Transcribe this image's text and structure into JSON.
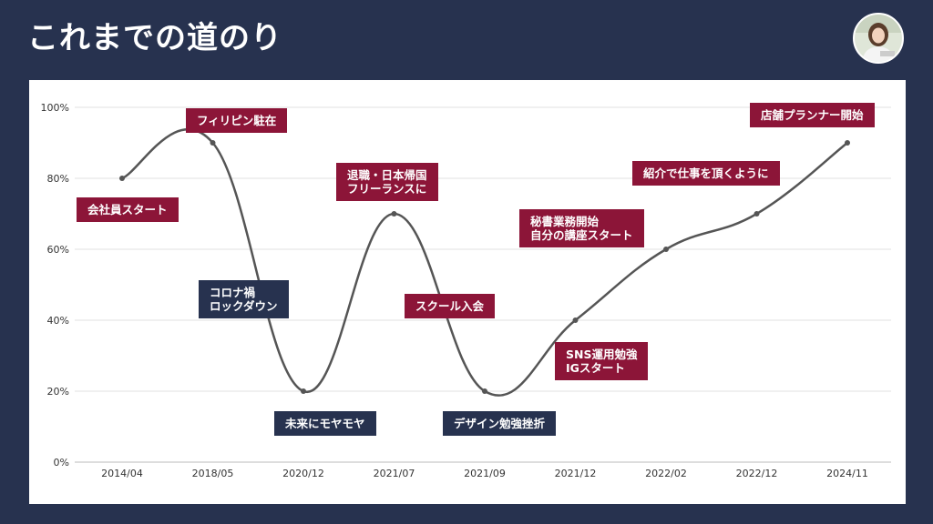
{
  "title": "これまでの道のり",
  "colors": {
    "background": "#27324f",
    "label_red": "#8c1538",
    "label_navy": "#27324f",
    "line": "#555555"
  },
  "chart_data": {
    "type": "line",
    "x": [
      "2014/04",
      "2018/05",
      "2020/12",
      "2021/07",
      "2021/09",
      "2021/12",
      "2022/02",
      "2022/12",
      "2024/11"
    ],
    "y": [
      80,
      90,
      20,
      70,
      20,
      40,
      60,
      70,
      90
    ],
    "yticks": [
      "0%",
      "20%",
      "40%",
      "60%",
      "80%",
      "100%"
    ],
    "ylim": [
      0,
      100
    ],
    "grid": true,
    "annotations": [
      {
        "text": "会社員スタート",
        "color": "red"
      },
      {
        "text": "フィリピン駐在",
        "color": "red"
      },
      {
        "text": "コロナ禍\nロックダウン",
        "color": "navy"
      },
      {
        "text": "未来にモヤモヤ",
        "color": "navy"
      },
      {
        "text": "退職・日本帰国\nフリーランスに",
        "color": "red"
      },
      {
        "text": "スクール入会",
        "color": "red"
      },
      {
        "text": "デザイン勉強挫折",
        "color": "navy"
      },
      {
        "text": "秘書業務開始\n自分の講座スタート",
        "color": "red"
      },
      {
        "text": "SNS運用勉強\nIGスタート",
        "color": "red"
      },
      {
        "text": "紹介で仕事を頂くように",
        "color": "red"
      },
      {
        "text": "店舗プランナー開始",
        "color": "red"
      }
    ]
  }
}
